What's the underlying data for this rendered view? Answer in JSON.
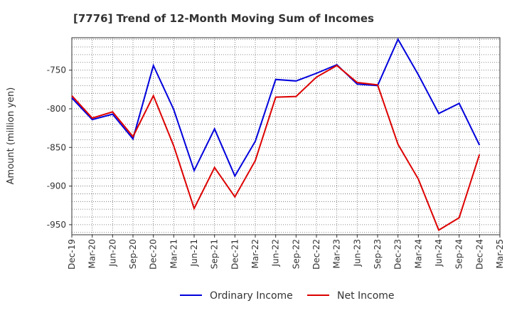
{
  "chart_data": {
    "type": "line",
    "title": "[7776]  Trend of 12-Month Moving Sum of Incomes",
    "xlabel": "",
    "ylabel": "Amount (million yen)",
    "ylim": [
      -963,
      -708
    ],
    "yticks": [
      -750,
      -800,
      -850,
      -900,
      -950
    ],
    "grid": true,
    "legend_position": "bottom",
    "categories": [
      "Dec-19",
      "Mar-20",
      "Jun-20",
      "Sep-20",
      "Dec-20",
      "Mar-21",
      "Jun-21",
      "Sep-21",
      "Dec-21",
      "Mar-22",
      "Jun-22",
      "Sep-22",
      "Dec-22",
      "Mar-23",
      "Jun-23",
      "Sep-23",
      "Dec-23",
      "Mar-24",
      "Jun-24",
      "Sep-24",
      "Dec-24",
      "Mar-25"
    ],
    "series": [
      {
        "name": "Ordinary Income",
        "color": "#0000dd",
        "values": [
          -786,
          -814,
          -807,
          -839,
          -744,
          -801,
          -880,
          -826,
          -887,
          -842,
          -762,
          -764,
          -754,
          -743,
          -768,
          -770,
          -710,
          -756,
          -806,
          -793,
          -847,
          null
        ]
      },
      {
        "name": "Net Income",
        "color": "#dd0000",
        "values": [
          -783,
          -812,
          -804,
          -836,
          -783,
          -848,
          -929,
          -876,
          -914,
          -867,
          -785,
          -784,
          -759,
          -744,
          -766,
          -769,
          -846,
          -891,
          -957,
          -941,
          -859,
          null
        ]
      }
    ]
  }
}
